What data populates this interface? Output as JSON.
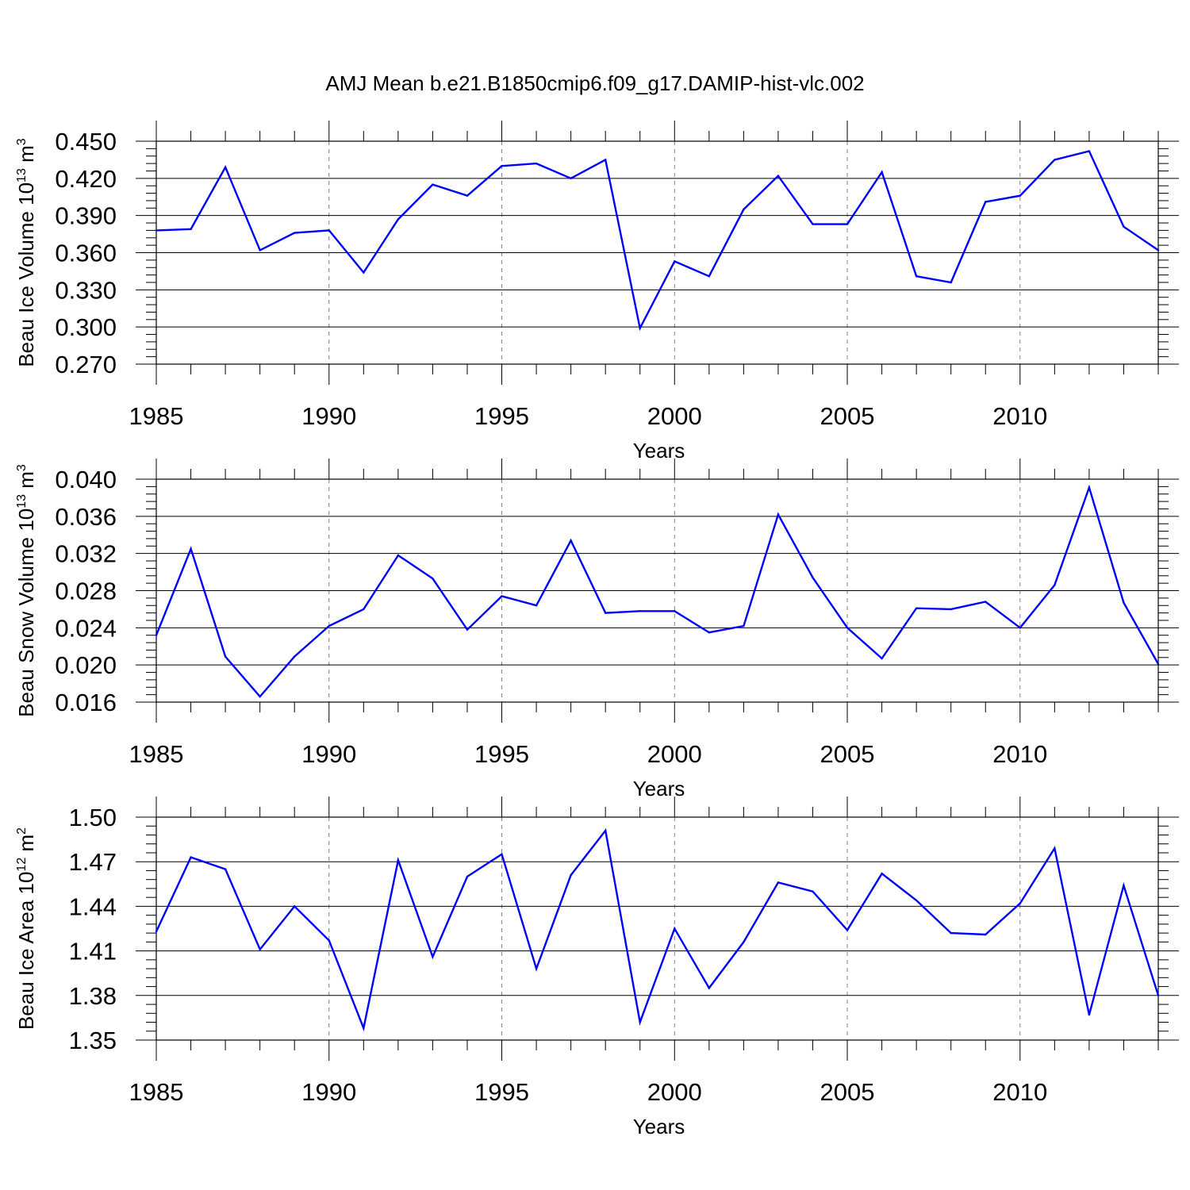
{
  "title": "AMJ Mean b.e21.B1850cmip6.f09_g17.DAMIP-hist-vlc.002",
  "colors": {
    "line": "#0000ff",
    "axis": "#000000",
    "grid": "#808080"
  },
  "chart_data": [
    {
      "type": "line",
      "ylabel": {
        "base": "Beau Ice Volume 10",
        "exp": "13",
        "unit": " m",
        "unit_exp": "3"
      },
      "xlabel": "Years",
      "xlim": [
        1985,
        2014
      ],
      "ylim": [
        0.27,
        0.45
      ],
      "yticks": [
        "0.450",
        "0.420",
        "0.390",
        "0.360",
        "0.330",
        "0.300",
        "0.270"
      ],
      "xticks": [
        "1985",
        "1990",
        "1995",
        "2000",
        "2005",
        "2010"
      ],
      "grid": "vertical dashed at major x ticks",
      "x": [
        1985,
        1986,
        1987,
        1988,
        1989,
        1990,
        1991,
        1992,
        1993,
        1994,
        1995,
        1996,
        1997,
        1998,
        1999,
        2000,
        2001,
        2002,
        2003,
        2004,
        2005,
        2006,
        2007,
        2008,
        2009,
        2010,
        2011,
        2012,
        2013,
        2014
      ],
      "values": [
        0.378,
        0.379,
        0.429,
        0.362,
        0.376,
        0.378,
        0.344,
        0.387,
        0.415,
        0.406,
        0.43,
        0.432,
        0.42,
        0.435,
        0.299,
        0.353,
        0.341,
        0.395,
        0.422,
        0.383,
        0.383,
        0.425,
        0.341,
        0.336,
        0.401,
        0.406,
        0.435,
        0.442,
        0.381,
        0.362
      ]
    },
    {
      "type": "line",
      "ylabel": {
        "base": "Beau Snow Volume 10",
        "exp": "13",
        "unit": " m",
        "unit_exp": "3"
      },
      "xlabel": "Years",
      "xlim": [
        1985,
        2014
      ],
      "ylim": [
        0.016,
        0.04
      ],
      "yticks": [
        "0.040",
        "0.036",
        "0.032",
        "0.028",
        "0.024",
        "0.020",
        "0.016"
      ],
      "xticks": [
        "1985",
        "1990",
        "1995",
        "2000",
        "2005",
        "2010"
      ],
      "grid": "vertical dashed at major x ticks",
      "x": [
        1985,
        1986,
        1987,
        1988,
        1989,
        1990,
        1991,
        1992,
        1993,
        1994,
        1995,
        1996,
        1997,
        1998,
        1999,
        2000,
        2001,
        2002,
        2003,
        2004,
        2005,
        2006,
        2007,
        2008,
        2009,
        2010,
        2011,
        2012,
        2013,
        2014
      ],
      "values": [
        0.0232,
        0.0325,
        0.0209,
        0.0166,
        0.0209,
        0.0242,
        0.026,
        0.0318,
        0.0293,
        0.0238,
        0.0274,
        0.0264,
        0.0334,
        0.0256,
        0.0258,
        0.0258,
        0.0235,
        0.0242,
        0.0362,
        0.0294,
        0.024,
        0.0207,
        0.0261,
        0.026,
        0.0268,
        0.024,
        0.0286,
        0.0391,
        0.0267,
        0.0201
      ]
    },
    {
      "type": "line",
      "ylabel": {
        "base": "Beau Ice Area 10",
        "exp": "12",
        "unit": " m",
        "unit_exp": "2"
      },
      "xlabel": "Years",
      "xlim": [
        1985,
        2014
      ],
      "ylim": [
        1.35,
        1.5
      ],
      "yticks": [
        "1.50",
        "1.47",
        "1.44",
        "1.41",
        "1.38",
        "1.35"
      ],
      "xticks": [
        "1985",
        "1990",
        "1995",
        "2000",
        "2005",
        "2010"
      ],
      "grid": "vertical dashed at major x ticks",
      "x": [
        1985,
        1986,
        1987,
        1988,
        1989,
        1990,
        1991,
        1992,
        1993,
        1994,
        1995,
        1996,
        1997,
        1998,
        1999,
        2000,
        2001,
        2002,
        2003,
        2004,
        2005,
        2006,
        2007,
        2008,
        2009,
        2010,
        2011,
        2012,
        2013,
        2014
      ],
      "values": [
        1.423,
        1.473,
        1.465,
        1.411,
        1.44,
        1.417,
        1.358,
        1.471,
        1.406,
        1.46,
        1.475,
        1.398,
        1.461,
        1.491,
        1.362,
        1.425,
        1.385,
        1.416,
        1.456,
        1.45,
        1.424,
        1.462,
        1.444,
        1.422,
        1.421,
        1.442,
        1.479,
        1.367,
        1.454,
        1.38
      ]
    }
  ]
}
